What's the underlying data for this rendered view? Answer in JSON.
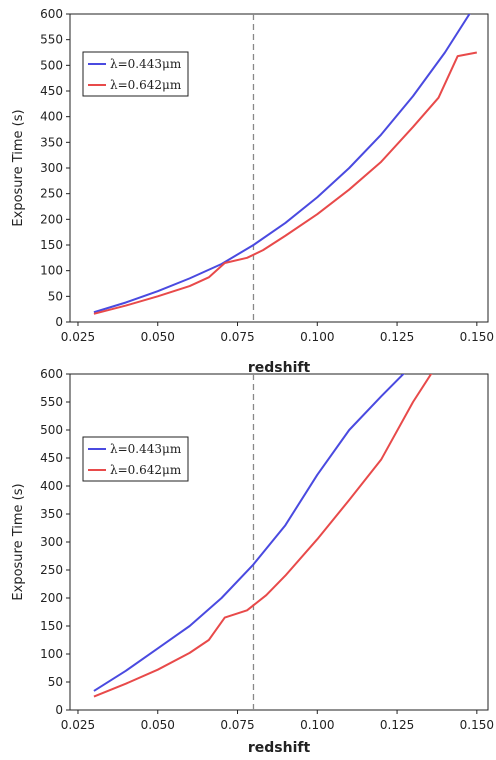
{
  "chart_data": [
    {
      "type": "line",
      "xlabel": "redshift",
      "ylabel": "Exposure Time (s)",
      "xlim": [
        0.0225,
        0.1535
      ],
      "ylim": [
        0,
        600
      ],
      "xticks": [
        0.025,
        0.05,
        0.075,
        0.1,
        0.125,
        0.15
      ],
      "xtick_labels": [
        "0.025",
        "0.050",
        "0.075",
        "0.100",
        "0.125",
        "0.150"
      ],
      "yticks": [
        0,
        50,
        100,
        150,
        200,
        250,
        300,
        350,
        400,
        450,
        500,
        550,
        600
      ],
      "ytick_labels": [
        "0",
        "50",
        "100",
        "150",
        "200",
        "250",
        "300",
        "350",
        "400",
        "450",
        "500",
        "550",
        "600"
      ],
      "vline": 0.08,
      "legend_position": "upper-left",
      "series": [
        {
          "name": "λ=0.443μm",
          "color": "#4a4ae0",
          "x": [
            0.03,
            0.04,
            0.05,
            0.06,
            0.07,
            0.08,
            0.09,
            0.1,
            0.11,
            0.12,
            0.13,
            0.14,
            0.148
          ],
          "y": [
            19,
            38,
            60,
            85,
            113,
            150,
            193,
            243,
            300,
            365,
            440,
            525,
            603
          ]
        },
        {
          "name": "λ=0.642μm",
          "color": "#e84a4a",
          "x": [
            0.03,
            0.04,
            0.05,
            0.06,
            0.066,
            0.071,
            0.078,
            0.083,
            0.09,
            0.1,
            0.11,
            0.12,
            0.13,
            0.138,
            0.144,
            0.15
          ],
          "y": [
            16,
            32,
            50,
            70,
            87,
            115,
            125,
            140,
            168,
            210,
            258,
            312,
            380,
            437,
            518,
            525
          ]
        }
      ]
    },
    {
      "type": "line",
      "xlabel": "redshift",
      "ylabel": "Exposure Time (s)",
      "xlim": [
        0.0225,
        0.1535
      ],
      "ylim": [
        0,
        600
      ],
      "xticks": [
        0.025,
        0.05,
        0.075,
        0.1,
        0.125,
        0.15
      ],
      "xtick_labels": [
        "0.025",
        "0.050",
        "0.075",
        "0.100",
        "0.125",
        "0.150"
      ],
      "yticks": [
        0,
        50,
        100,
        150,
        200,
        250,
        300,
        350,
        400,
        450,
        500,
        550,
        600
      ],
      "ytick_labels": [
        "0",
        "50",
        "100",
        "150",
        "200",
        "250",
        "300",
        "350",
        "400",
        "450",
        "500",
        "550",
        "600"
      ],
      "vline": 0.08,
      "legend_position": "upper-left",
      "series": [
        {
          "name": "λ=0.443μm",
          "color": "#4a4ae0",
          "x": [
            0.03,
            0.04,
            0.05,
            0.06,
            0.07,
            0.08,
            0.09,
            0.1,
            0.11,
            0.12,
            0.1275
          ],
          "y": [
            34,
            70,
            110,
            150,
            200,
            260,
            330,
            420,
            500,
            560,
            603
          ]
        },
        {
          "name": "λ=0.642μm",
          "color": "#e84a4a",
          "x": [
            0.03,
            0.04,
            0.05,
            0.06,
            0.066,
            0.071,
            0.078,
            0.084,
            0.09,
            0.1,
            0.11,
            0.12,
            0.13,
            0.136
          ],
          "y": [
            24,
            47,
            72,
            102,
            125,
            165,
            178,
            205,
            240,
            305,
            375,
            447,
            550,
            603
          ]
        }
      ]
    }
  ]
}
